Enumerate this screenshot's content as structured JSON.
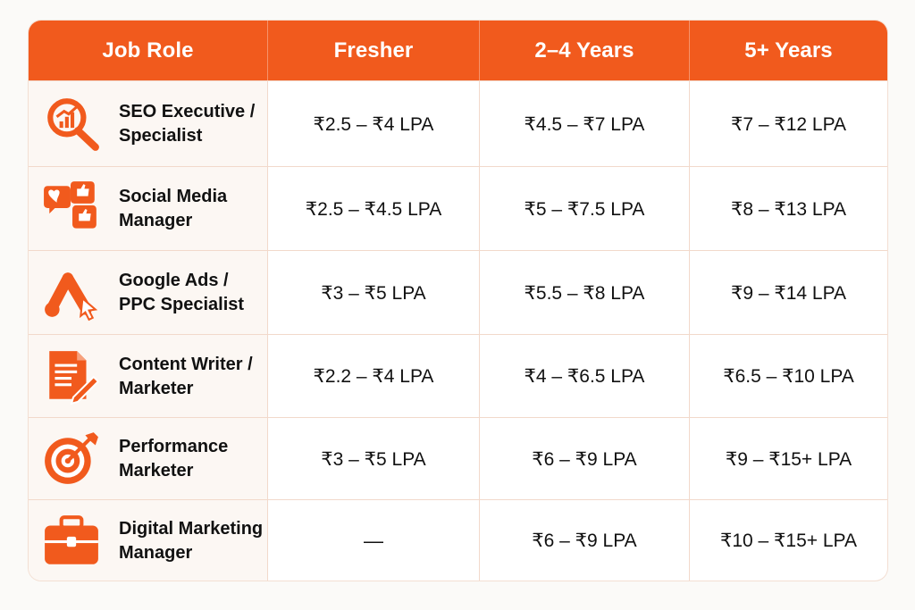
{
  "table": {
    "headers": [
      "Job Role",
      "Fresher",
      "2–4 Years",
      "5+ Years"
    ],
    "rows": [
      {
        "role_line1": "SEO Executive /",
        "role_line2": "Specialist",
        "icon": "seo-analytics-magnifier-icon",
        "fresher": "₹2.5 – ₹4 LPA",
        "mid": "₹4.5 – ₹7 LPA",
        "senior": "₹7 – ₹12 LPA"
      },
      {
        "role_line1": "Social Media",
        "role_line2": "Manager",
        "icon": "social-likes-icon",
        "fresher": "₹2.5 – ₹4.5 LPA",
        "mid": "₹5 – ₹7.5 LPA",
        "senior": "₹8 – ₹13 LPA"
      },
      {
        "role_line1": "Google Ads /",
        "role_line2": "PPC Specialist",
        "icon": "google-ads-click-icon",
        "fresher": "₹3 – ₹5 LPA",
        "mid": "₹5.5 – ₹8 LPA",
        "senior": "₹9 – ₹14 LPA"
      },
      {
        "role_line1": "Content Writer /",
        "role_line2": "Marketer",
        "icon": "content-document-pencil-icon",
        "fresher": "₹2.2 – ₹4 LPA",
        "mid": "₹4 – ₹6.5 LPA",
        "senior": "₹6.5 – ₹10 LPA"
      },
      {
        "role_line1": "Performance",
        "role_line2": "Marketer",
        "icon": "target-arrow-icon",
        "fresher": "₹3 – ₹5 LPA",
        "mid": "₹6 – ₹9 LPA",
        "senior": "₹9 – ₹15+ LPA"
      },
      {
        "role_line1": "Digital Marketing",
        "role_line2": "Manager",
        "icon": "briefcase-icon",
        "fresher": "—",
        "mid": "₹6 – ₹9 LPA",
        "senior": "₹10 – ₹15+ LPA"
      }
    ]
  },
  "colors": {
    "accent": "#f15a1d",
    "header_text": "#ffffff",
    "grid": "#f2d9cb",
    "role_bg": "#fcf7f3",
    "text": "#111111"
  }
}
